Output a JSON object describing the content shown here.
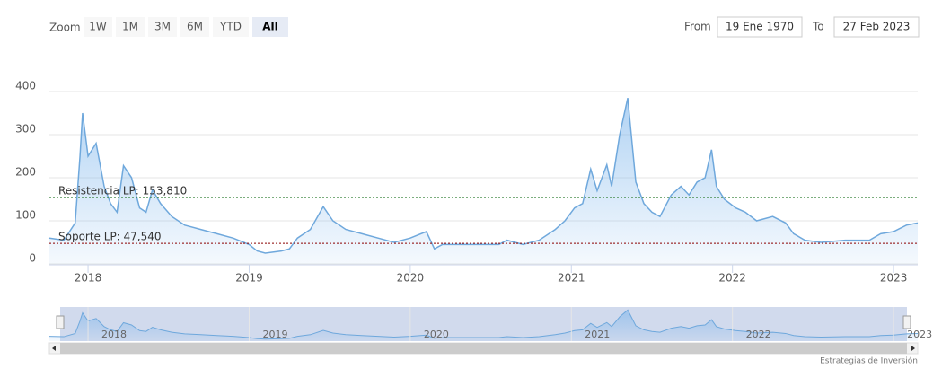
{
  "chart_data": {
    "type": "area",
    "range_selector": {
      "label": "Zoom",
      "buttons": [
        "1W",
        "1M",
        "3M",
        "6M",
        "YTD",
        "All"
      ],
      "selected": 5,
      "from_label": "From",
      "from": "19 Ene 1970",
      "to_label": "To",
      "to": "27 Feb 2023"
    },
    "credits": "Estrategias de Inversión",
    "color": "#6fa8dc",
    "x": [
      2017.76,
      2017.85,
      2017.92,
      2017.95,
      2017.966,
      2018.0,
      2018.05,
      2018.1,
      2018.14,
      2018.18,
      2018.22,
      2018.27,
      2018.32,
      2018.36,
      2018.4,
      2018.45,
      2018.52,
      2018.6,
      2018.7,
      2018.8,
      2018.9,
      2019.0,
      2019.05,
      2019.1,
      2019.2,
      2019.25,
      2019.3,
      2019.38,
      2019.46,
      2019.52,
      2019.6,
      2019.7,
      2019.8,
      2019.9,
      2020.0,
      2020.1,
      2020.15,
      2020.2,
      2020.25,
      2020.4,
      2020.55,
      2020.6,
      2020.7,
      2020.8,
      2020.9,
      2020.96,
      2021.02,
      2021.07,
      2021.12,
      2021.16,
      2021.22,
      2021.25,
      2021.3,
      2021.35,
      2021.4,
      2021.45,
      2021.5,
      2021.55,
      2021.62,
      2021.68,
      2021.73,
      2021.78,
      2021.83,
      2021.87,
      2021.9,
      2021.95,
      2022.02,
      2022.08,
      2022.15,
      2022.25,
      2022.33,
      2022.38,
      2022.45,
      2022.55,
      2022.7,
      2022.85,
      2022.92,
      2023.0,
      2023.08,
      2023.15
    ],
    "values": [
      60,
      55,
      95,
      250,
      350,
      250,
      280,
      180,
      140,
      120,
      228,
      200,
      130,
      120,
      172,
      140,
      110,
      90,
      80,
      70,
      60,
      45,
      30,
      25,
      30,
      35,
      60,
      80,
      133,
      100,
      80,
      70,
      60,
      50,
      60,
      75,
      35,
      45,
      45,
      45,
      45,
      55,
      45,
      55,
      80,
      100,
      130,
      140,
      220,
      170,
      230,
      180,
      300,
      385,
      190,
      140,
      120,
      110,
      160,
      180,
      160,
      190,
      200,
      265,
      180,
      150,
      130,
      120,
      100,
      110,
      95,
      70,
      55,
      50,
      55,
      55,
      70,
      75,
      90,
      95
    ],
    "xlim": [
      2017.76,
      2023.15
    ],
    "xticks": [
      2018,
      2019,
      2020,
      2021,
      2022,
      2023
    ],
    "ylim": [
      0,
      400
    ],
    "yticks": [
      0,
      100,
      200,
      300,
      400
    ],
    "grid": true,
    "plot_lines": [
      {
        "value": 153.81,
        "label": "Resistencia LP: 153,810",
        "color": "#2e7d32"
      },
      {
        "value": 47.54,
        "label": "Soporte LP: 47,540",
        "color": "#8b0000"
      }
    ]
  }
}
